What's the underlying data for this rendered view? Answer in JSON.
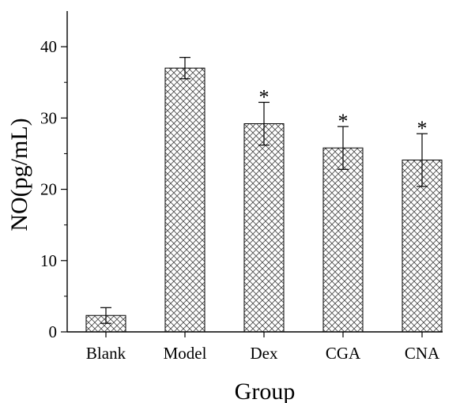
{
  "chart_data": {
    "type": "bar",
    "title": "",
    "xlabel": "Group",
    "ylabel": "NO(pg/mL)",
    "categories": [
      "Blank",
      "Model",
      "Dex",
      "CGA",
      "CNA"
    ],
    "values": [
      2.3,
      37.0,
      29.2,
      25.8,
      24.1
    ],
    "errors": [
      1.1,
      1.5,
      3.0,
      3.0,
      3.7
    ],
    "annotations": [
      "",
      "",
      "*",
      "*",
      "*"
    ],
    "ylim": [
      0,
      45
    ],
    "yticks": [
      0,
      10,
      20,
      30,
      40
    ],
    "grid": false,
    "bar_fill": "crosshatch",
    "colors": {
      "bar_stroke": "#000000",
      "hatch": "#444444",
      "axis": "#000000"
    }
  }
}
